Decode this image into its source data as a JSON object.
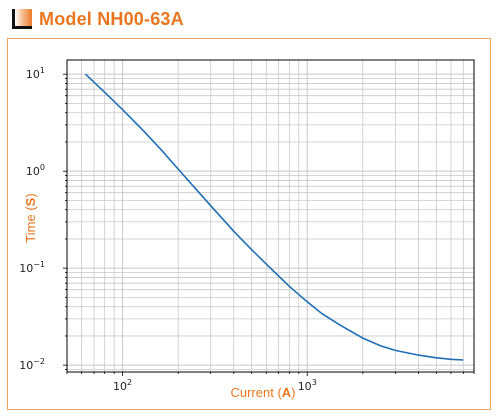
{
  "header": {
    "title": "Model NH00-63A"
  },
  "colors": {
    "accent": "#e8761f",
    "frame_border": "#f0a360",
    "line": "#1f6fb5",
    "grid": "#c8c8c8"
  },
  "chart_data": {
    "type": "line",
    "title": "",
    "xlabel_prefix": "Current (",
    "xlabel_unit": "A",
    "xlabel_suffix": ")",
    "ylabel_prefix": "Time (",
    "ylabel_unit": "S",
    "ylabel_suffix": ")",
    "xscale": "log",
    "yscale": "log",
    "xlim": [
      50,
      8000
    ],
    "ylim": [
      0.0085,
      14
    ],
    "grid": true,
    "x_tick_labels": [
      {
        "value": 100,
        "base": "10",
        "exp": "2"
      },
      {
        "value": 1000,
        "base": "10",
        "exp": "3"
      }
    ],
    "y_tick_labels": [
      {
        "value": 10,
        "base": "10",
        "exp": "1"
      },
      {
        "value": 1,
        "base": "10",
        "exp": "0"
      },
      {
        "value": 0.1,
        "base": "10",
        "exp": "−1"
      },
      {
        "value": 0.01,
        "base": "10",
        "exp": "−2"
      }
    ],
    "series": [
      {
        "x": [
          63,
          80,
          100,
          130,
          160,
          200,
          250,
          300,
          400,
          500,
          600,
          700,
          800,
          1000,
          1200,
          1500,
          2000,
          2500,
          3000,
          4000,
          5000,
          6000,
          7000
        ],
        "y": [
          10.0,
          6.5,
          4.3,
          2.6,
          1.7,
          1.05,
          0.65,
          0.44,
          0.24,
          0.155,
          0.11,
          0.083,
          0.065,
          0.045,
          0.034,
          0.026,
          0.019,
          0.0158,
          0.0142,
          0.0127,
          0.0119,
          0.0115,
          0.0113
        ]
      }
    ]
  }
}
